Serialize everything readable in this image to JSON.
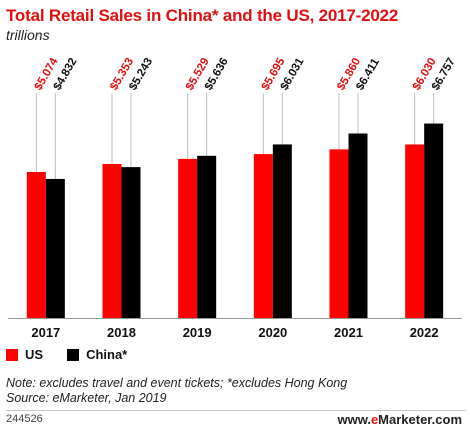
{
  "header": {
    "title": "Total Retail Sales in China* and the US, 2017-2022",
    "subtitle": "trillions"
  },
  "chart_data": {
    "type": "bar",
    "title": "Total Retail Sales in China* and the US, 2017-2022",
    "subtitle": "trillions",
    "categories": [
      "2017",
      "2018",
      "2019",
      "2020",
      "2021",
      "2022"
    ],
    "series": [
      {
        "name": "US",
        "color": "#ff0000",
        "values": [
          5.074,
          5.353,
          5.529,
          5.695,
          5.86,
          6.03
        ],
        "labels": [
          "$5.074",
          "$5.353",
          "$5.529",
          "$5.695",
          "$5.860",
          "$6.030"
        ]
      },
      {
        "name": "China*",
        "color": "#000000",
        "values": [
          4.832,
          5.243,
          5.636,
          6.031,
          6.411,
          6.757
        ],
        "labels": [
          "$4.832",
          "$5.243",
          "$5.636",
          "$6.031",
          "$6.411",
          "$6.757"
        ]
      }
    ],
    "xlabel": "",
    "ylabel": "",
    "ylim": [
      0,
      9.0
    ],
    "grid": false,
    "legend": "bottom-left"
  },
  "legend": {
    "items": [
      {
        "label": "US",
        "color": "#ff0000"
      },
      {
        "label": "China*",
        "color": "#000000"
      }
    ]
  },
  "footer": {
    "note": "Note: excludes travel and event tickets; *excludes Hong Kong",
    "source": "Source: eMarketer, Jan 2019",
    "chart_id": "244526",
    "brand_prefix": "www.",
    "brand_e": "e",
    "brand_name": "Marketer",
    "brand_suffix": ".com"
  }
}
